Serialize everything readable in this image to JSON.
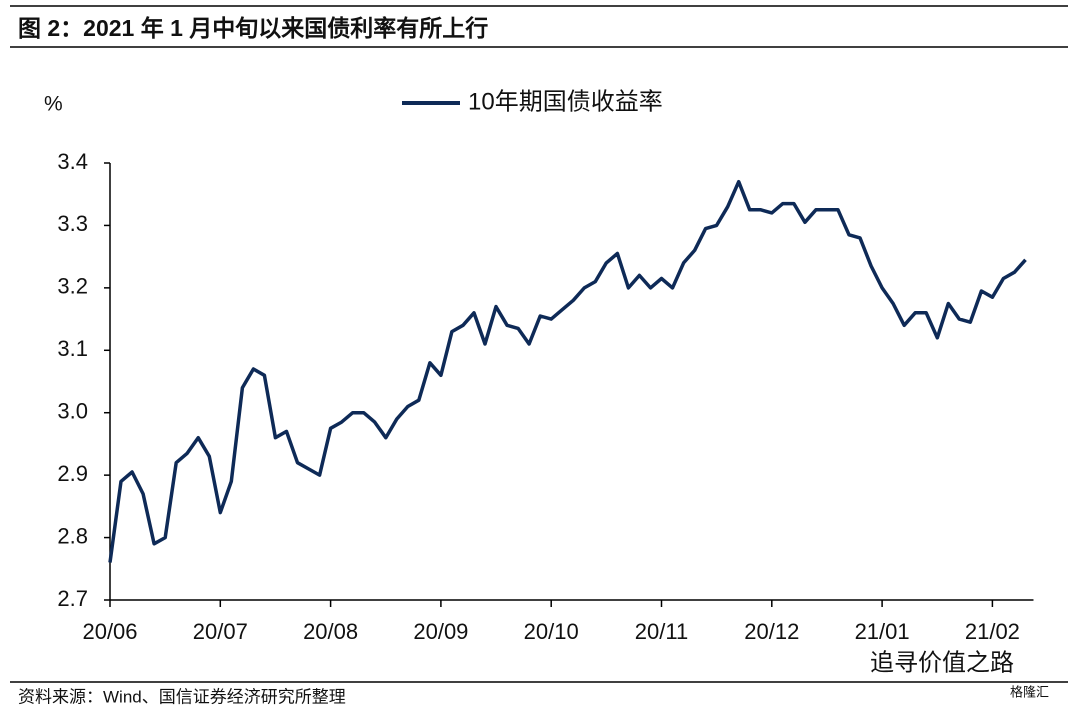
{
  "chart_data": {
    "type": "line",
    "title": "图 2：2021 年 1 月中旬以来国债利率有所上行",
    "y_label": "%",
    "source": "资料来源：Wind、国信证券经济研究所整理",
    "annotations": [
      "追寻价值之路",
      "格隆汇"
    ],
    "legend": "top",
    "categories": [
      "20/06",
      null,
      null,
      null,
      null,
      null,
      null,
      null,
      null,
      null,
      "20/07",
      null,
      null,
      null,
      null,
      null,
      null,
      null,
      null,
      null,
      "20/08",
      null,
      null,
      null,
      null,
      null,
      null,
      null,
      null,
      null,
      "20/09",
      null,
      null,
      null,
      null,
      null,
      null,
      null,
      null,
      null,
      "20/10",
      null,
      null,
      null,
      null,
      null,
      null,
      null,
      null,
      null,
      "20/11",
      null,
      null,
      null,
      null,
      null,
      null,
      null,
      null,
      null,
      "20/12",
      null,
      null,
      null,
      null,
      null,
      null,
      null,
      null,
      null,
      "21/01",
      null,
      null,
      null,
      null,
      null,
      null,
      null,
      null,
      null,
      "21/02",
      null,
      null,
      null
    ],
    "series": [
      {
        "name": "10年期国债收益率",
        "color": "#0e2a57",
        "values": [
          2.76,
          2.89,
          2.905,
          2.87,
          2.79,
          2.8,
          2.92,
          2.935,
          2.96,
          2.93,
          2.84,
          2.89,
          3.04,
          3.07,
          3.06,
          2.96,
          2.97,
          2.92,
          2.91,
          2.9,
          2.975,
          2.985,
          3.0,
          3.0,
          2.985,
          2.96,
          2.99,
          3.01,
          3.02,
          3.08,
          3.06,
          3.13,
          3.14,
          3.16,
          3.11,
          3.17,
          3.14,
          3.135,
          3.11,
          3.155,
          3.15,
          3.165,
          3.18,
          3.2,
          3.21,
          3.24,
          3.255,
          3.2,
          3.22,
          3.2,
          3.215,
          3.2,
          3.24,
          3.26,
          3.295,
          3.3,
          3.33,
          3.37,
          3.325,
          3.325,
          3.32,
          3.335,
          3.335,
          3.305,
          3.325,
          3.325,
          3.325,
          3.285,
          3.28,
          3.235,
          3.2,
          3.175,
          3.14,
          3.16,
          3.16,
          3.12,
          3.175,
          3.15,
          3.145,
          3.195,
          3.185,
          3.215,
          3.225,
          3.245
        ]
      }
    ],
    "ylim": [
      2.7,
      3.4
    ],
    "yticks": [
      2.7,
      2.8,
      2.9,
      {
        "value": 3,
        "label": "3.0"
      },
      3.1,
      3.2,
      3.3,
      3.4
    ],
    "grid": false
  }
}
